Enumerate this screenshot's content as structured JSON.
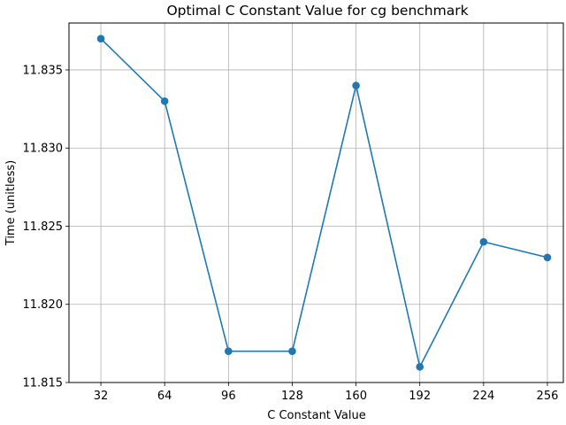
{
  "chart_data": {
    "type": "line",
    "title": "Optimal C Constant Value for cg benchmark",
    "xlabel": "C Constant Value",
    "ylabel": "Time (unitless)",
    "x": [
      32,
      64,
      96,
      128,
      160,
      192,
      224,
      256
    ],
    "x_tick_labels": [
      "32",
      "64",
      "96",
      "128",
      "160",
      "192",
      "224",
      "256"
    ],
    "y_ticks": [
      11.815,
      11.82,
      11.825,
      11.83,
      11.835
    ],
    "y_tick_labels": [
      "11.815",
      "11.820",
      "11.825",
      "11.830",
      "11.835"
    ],
    "series": [
      {
        "values": [
          11.837,
          11.833,
          11.817,
          11.817,
          11.834,
          11.816,
          11.824,
          11.823
        ],
        "color": "#1f77b4",
        "marker": "circle"
      }
    ],
    "xlim": [
      16,
      264
    ],
    "ylim": [
      11.815,
      11.838
    ],
    "grid": true
  }
}
